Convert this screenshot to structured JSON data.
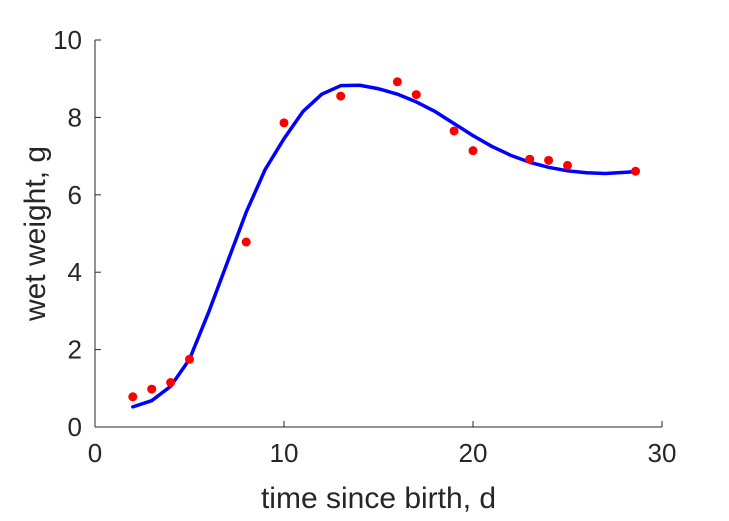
{
  "chart_data": {
    "type": "scatter",
    "title": "",
    "xlabel": "time since birth, d",
    "ylabel": "wet weight, g",
    "xlim": [
      0,
      30
    ],
    "ylim": [
      0,
      10
    ],
    "xticks": [
      0,
      10,
      20,
      30
    ],
    "yticks": [
      0,
      2,
      4,
      6,
      8,
      10
    ],
    "grid": false,
    "legend": "none",
    "series": [
      {
        "kind": "scatter",
        "color": "#ff0000",
        "x": [
          2.0,
          3.0,
          4.0,
          5.0,
          8.0,
          10.0,
          13.0,
          16.0,
          17.0,
          19.0,
          20.0,
          23.0,
          24.0,
          25.0,
          28.6
        ],
        "y": [
          0.78,
          0.98,
          1.15,
          1.75,
          4.78,
          7.86,
          8.55,
          8.92,
          8.59,
          7.65,
          7.14,
          6.92,
          6.89,
          6.76,
          6.61
        ]
      },
      {
        "kind": "line",
        "color": "#0000ff",
        "x": [
          2.0,
          3.0,
          4.0,
          5.0,
          6.0,
          7.0,
          8.0,
          9.0,
          10.0,
          11.0,
          12.0,
          13.0,
          14.0,
          15.0,
          16.0,
          17.0,
          18.0,
          19.0,
          20.0,
          21.0,
          22.0,
          23.0,
          24.0,
          25.0,
          26.0,
          27.0,
          28.0,
          28.6
        ],
        "y": [
          0.52,
          0.68,
          1.05,
          1.75,
          2.95,
          4.25,
          5.55,
          6.65,
          7.45,
          8.15,
          8.6,
          8.82,
          8.83,
          8.74,
          8.6,
          8.4,
          8.15,
          7.84,
          7.53,
          7.25,
          7.02,
          6.84,
          6.71,
          6.62,
          6.57,
          6.55,
          6.58,
          6.6
        ]
      }
    ]
  }
}
